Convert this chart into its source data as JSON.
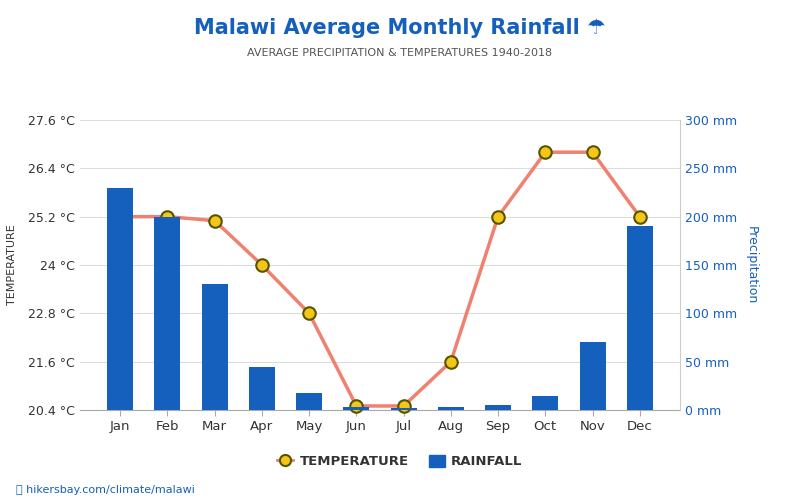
{
  "title": "Malawi Average Monthly Rainfall ☂",
  "subtitle": "AVERAGE PRECIPITATION & TEMPERATURES 1940-2018",
  "months": [
    "Jan",
    "Feb",
    "Mar",
    "Apr",
    "May",
    "Jun",
    "Jul",
    "Aug",
    "Sep",
    "Oct",
    "Nov",
    "Dec"
  ],
  "temperature": [
    25.2,
    25.2,
    25.1,
    24.0,
    22.8,
    20.5,
    20.5,
    21.6,
    25.2,
    26.8,
    26.8,
    25.2
  ],
  "rainfall": [
    230,
    200,
    130,
    45,
    18,
    3,
    2,
    3,
    5,
    15,
    70,
    190
  ],
  "temp_ylim": [
    20.4,
    27.6
  ],
  "rain_ylim": [
    0,
    300
  ],
  "temp_yticks": [
    20.4,
    21.6,
    22.8,
    24.0,
    25.2,
    26.4,
    27.6
  ],
  "rain_yticks": [
    0,
    50,
    100,
    150,
    200,
    250,
    300
  ],
  "temp_yticklabels": [
    "20.4 °C",
    "21.6 °C",
    "22.8 °C",
    "24 °C",
    "25.2 °C",
    "26.4 °C",
    "27.6 °C"
  ],
  "rain_yticklabels": [
    "0 mm",
    "50 mm",
    "100 mm",
    "150 mm",
    "200 mm",
    "250 mm",
    "300 mm"
  ],
  "bar_color": "#1560bd",
  "line_color": "#f08070",
  "marker_face_color": "#f5c518",
  "marker_edge_color": "#555500",
  "title_color": "#1560bd",
  "subtitle_color": "#555555",
  "axis_label_color": "#1560bd",
  "tick_label_color": "#333333",
  "ylabel_left": "TEMPERATURE",
  "ylabel_right": "Precipitation",
  "watermark": "hikersbay.com/climate/malawi",
  "background_color": "#ffffff",
  "grid_color": "#dddddd",
  "fig_width": 8.0,
  "fig_height": 5.0
}
